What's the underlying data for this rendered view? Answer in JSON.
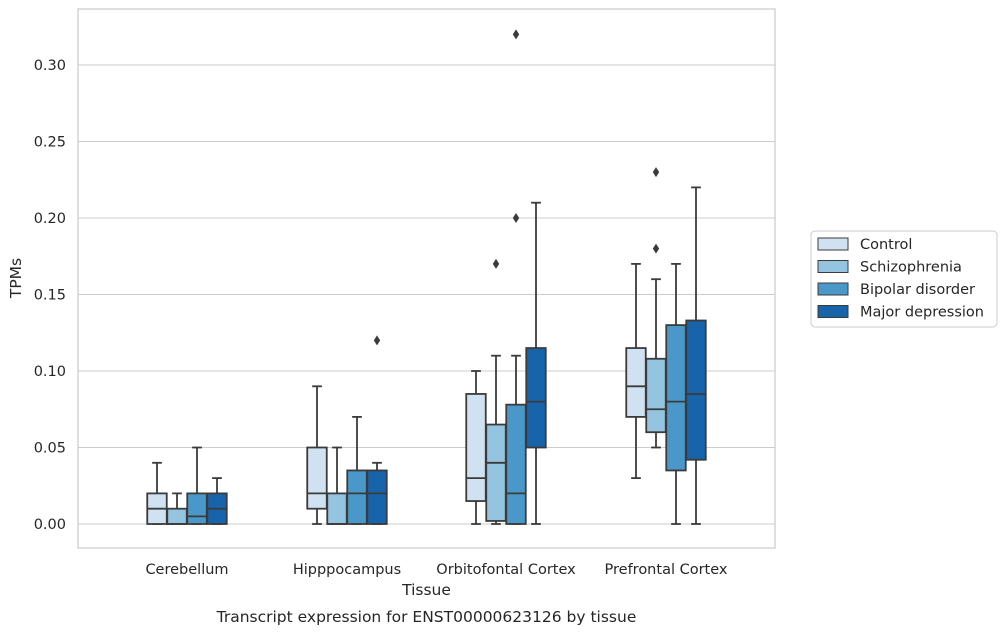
{
  "chart_data": {
    "type": "box",
    "xlabel": "Tissue",
    "ylabel": "TPMs",
    "caption": "Transcript expression for ENST00000623126 by tissue",
    "ylim": [
      -0.016,
      0.337
    ],
    "yticks": [
      "0.00",
      "0.05",
      "0.10",
      "0.15",
      "0.20",
      "0.25",
      "0.30"
    ],
    "grid": "horizontal",
    "legend_position": "right",
    "categories": [
      "Cerebellum",
      "Hipppocampus",
      "Orbitofontal Cortex",
      "Prefrontal Cortex"
    ],
    "series": [
      {
        "name": "Control",
        "color": "#d0e1f2",
        "boxes": [
          {
            "whislo": 0.0,
            "q1": 0.0,
            "med": 0.01,
            "q3": 0.02,
            "whishi": 0.04,
            "fliers": []
          },
          {
            "whislo": 0.0,
            "q1": 0.01,
            "med": 0.02,
            "q3": 0.05,
            "whishi": 0.09,
            "fliers": []
          },
          {
            "whislo": 0.0,
            "q1": 0.015,
            "med": 0.03,
            "q3": 0.085,
            "whishi": 0.1,
            "fliers": []
          },
          {
            "whislo": 0.03,
            "q1": 0.07,
            "med": 0.09,
            "q3": 0.115,
            "whishi": 0.17,
            "fliers": []
          }
        ]
      },
      {
        "name": "Schizophrenia",
        "color": "#94c4df",
        "boxes": [
          {
            "whislo": 0.0,
            "q1": 0.0,
            "med": 0.0,
            "q3": 0.01,
            "whishi": 0.02,
            "fliers": []
          },
          {
            "whislo": 0.0,
            "q1": 0.0,
            "med": 0.0,
            "q3": 0.02,
            "whishi": 0.05,
            "fliers": []
          },
          {
            "whislo": 0.0,
            "q1": 0.002,
            "med": 0.04,
            "q3": 0.065,
            "whishi": 0.11,
            "fliers": [
              0.17
            ]
          },
          {
            "whislo": 0.05,
            "q1": 0.06,
            "med": 0.075,
            "q3": 0.108,
            "whishi": 0.16,
            "fliers": [
              0.18,
              0.23
            ]
          }
        ]
      },
      {
        "name": "Bipolar disorder",
        "color": "#4a98c9",
        "boxes": [
          {
            "whislo": 0.0,
            "q1": 0.0,
            "med": 0.005,
            "q3": 0.02,
            "whishi": 0.05,
            "fliers": []
          },
          {
            "whislo": 0.0,
            "q1": 0.0,
            "med": 0.02,
            "q3": 0.035,
            "whishi": 0.07,
            "fliers": []
          },
          {
            "whislo": 0.0,
            "q1": 0.0,
            "med": 0.02,
            "q3": 0.078,
            "whishi": 0.11,
            "fliers": [
              0.2,
              0.32
            ]
          },
          {
            "whislo": 0.0,
            "q1": 0.035,
            "med": 0.08,
            "q3": 0.13,
            "whishi": 0.17,
            "fliers": []
          }
        ]
      },
      {
        "name": "Major depression",
        "color": "#1764ab",
        "boxes": [
          {
            "whislo": 0.0,
            "q1": 0.0,
            "med": 0.01,
            "q3": 0.02,
            "whishi": 0.03,
            "fliers": []
          },
          {
            "whislo": 0.0,
            "q1": 0.0,
            "med": 0.02,
            "q3": 0.035,
            "whishi": 0.04,
            "fliers": [
              0.12
            ]
          },
          {
            "whislo": 0.0,
            "q1": 0.05,
            "med": 0.08,
            "q3": 0.115,
            "whishi": 0.21,
            "fliers": []
          },
          {
            "whislo": 0.0,
            "q1": 0.042,
            "med": 0.085,
            "q3": 0.133,
            "whishi": 0.22,
            "fliers": []
          }
        ]
      }
    ]
  }
}
